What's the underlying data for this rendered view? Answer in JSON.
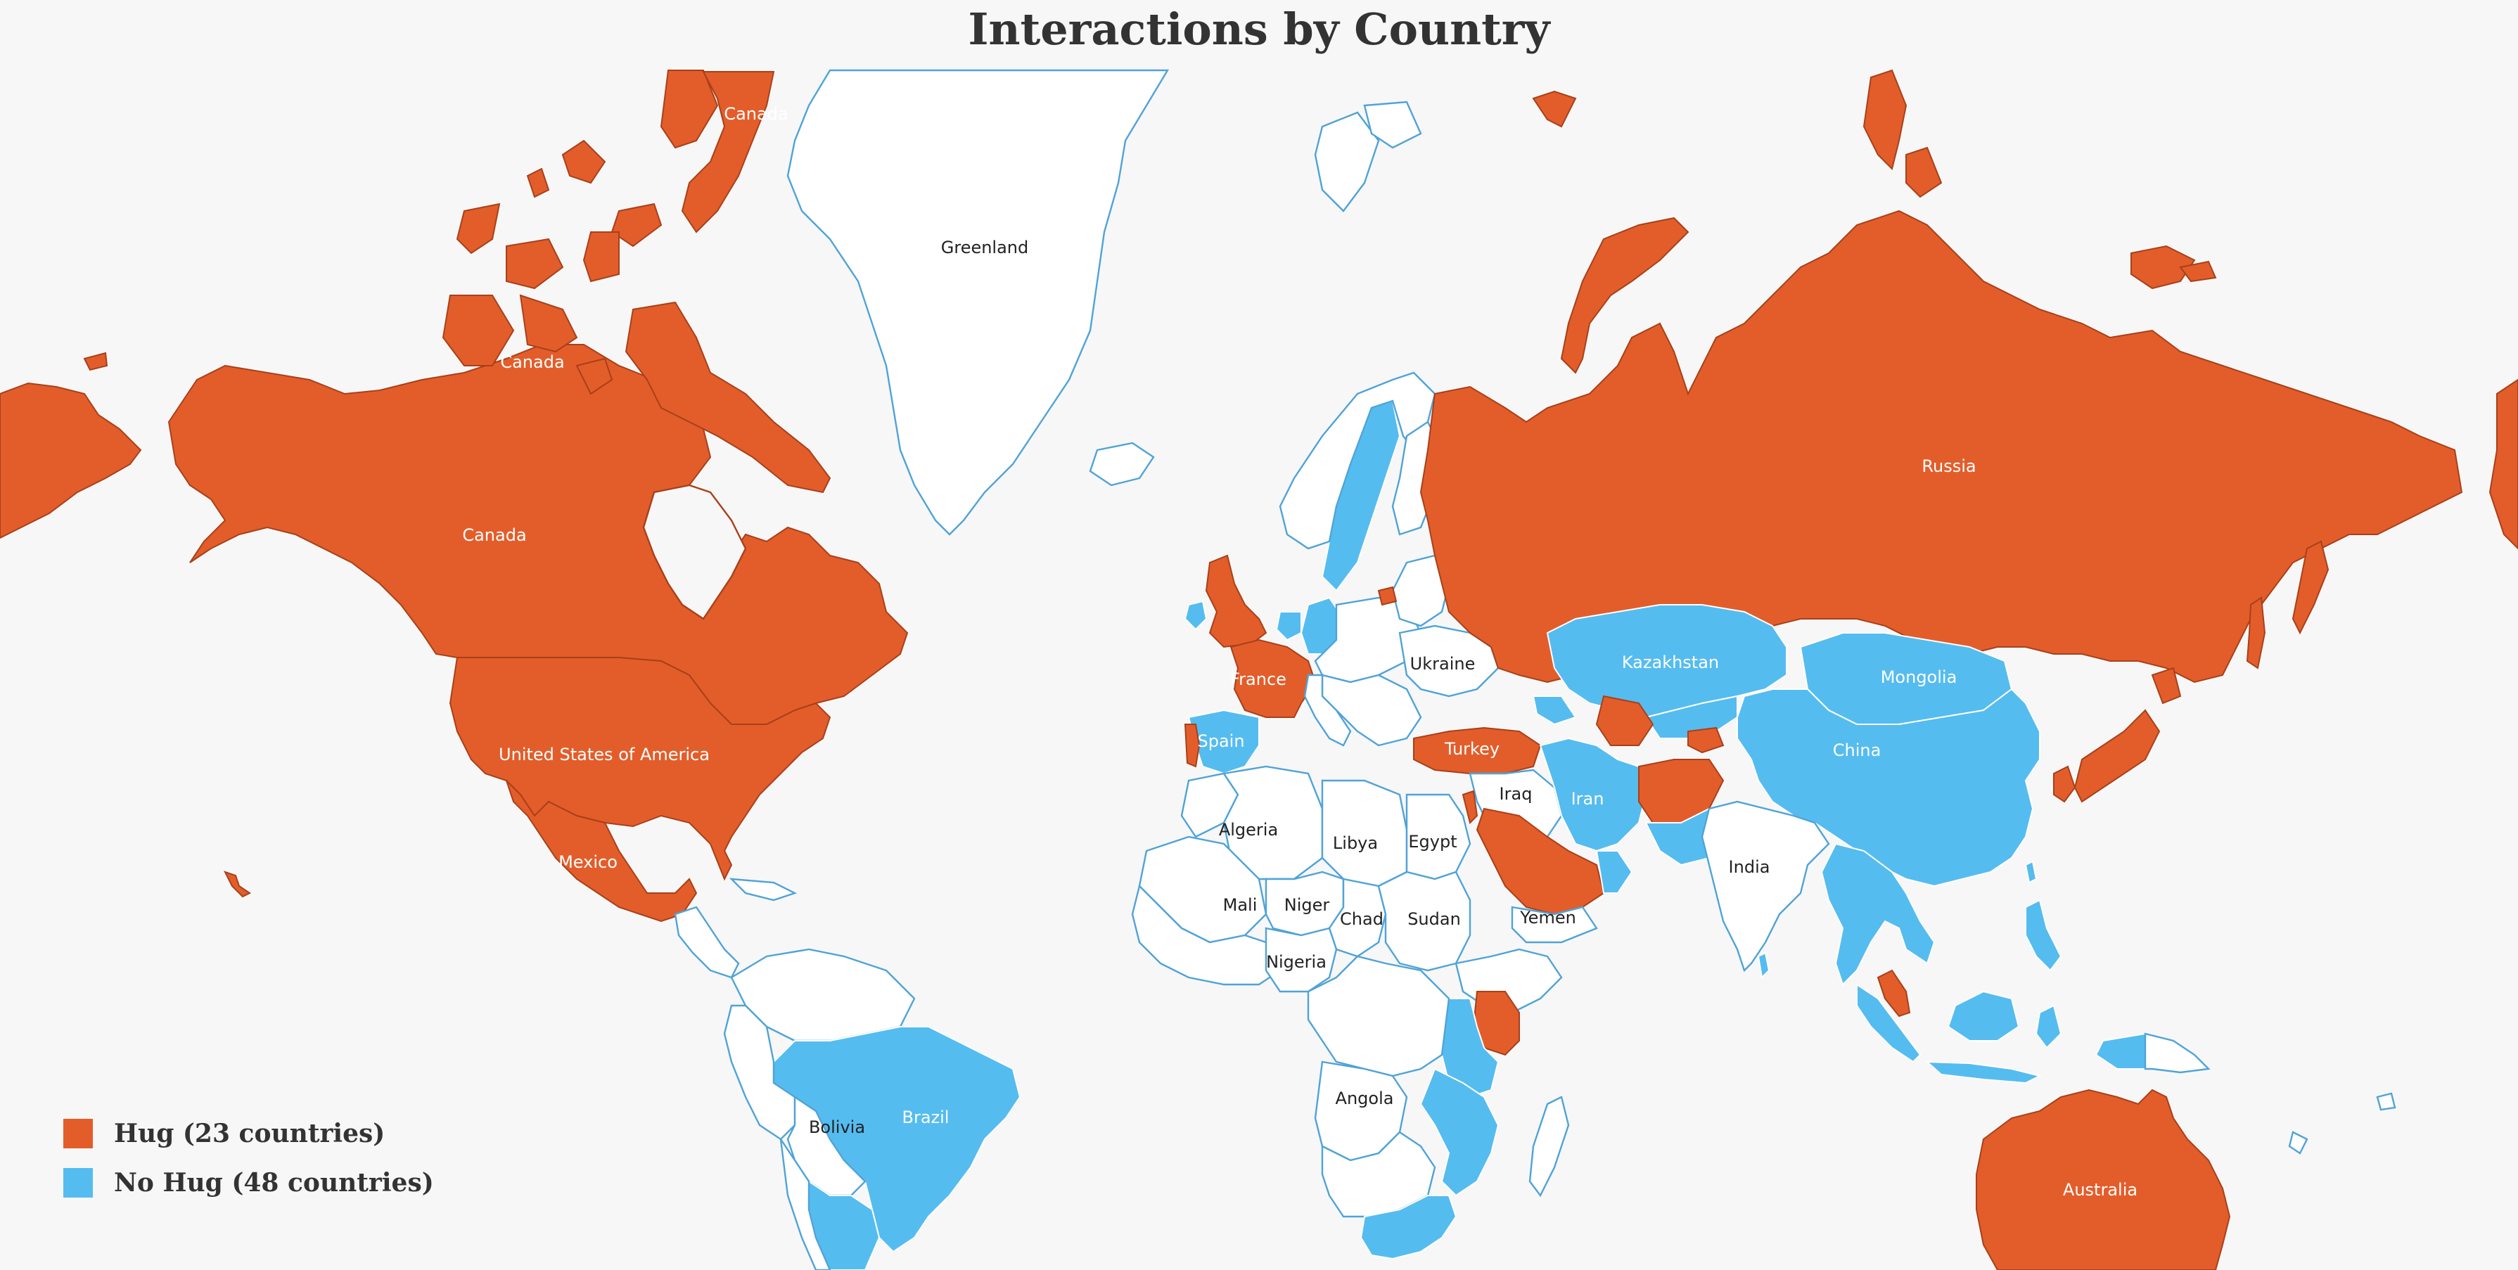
{
  "title": "Interactions by Country",
  "colors": {
    "hug": "#e35d2a",
    "no_hug": "#55bcf0",
    "no_data": "#ffffff",
    "border": "#4fa3d8",
    "background": "#f7f7f7"
  },
  "legend": {
    "hug_label": "Hug (23 countries)",
    "no_hug_label": "No Hug (48 countries)"
  },
  "map_labels": {
    "canada_1": "Canada",
    "canada_2": "Canada",
    "canada_3": "Canada",
    "greenland": "Greenland",
    "russia": "Russia",
    "kazakhstan": "Kazakhstan",
    "mongolia": "Mongolia",
    "china": "China",
    "ukraine": "Ukraine",
    "france": "France",
    "spain": "Spain",
    "turkey": "Turkey",
    "iraq": "Iraq",
    "iran": "Iran",
    "usa": "United States of America",
    "mexico": "Mexico",
    "algeria": "Algeria",
    "libya": "Libya",
    "egypt": "Egypt",
    "mali": "Mali",
    "niger": "Niger",
    "chad": "Chad",
    "sudan": "Sudan",
    "nigeria": "Nigeria",
    "yemen": "Yemen",
    "india": "India",
    "angola": "Angola",
    "bolivia": "Bolivia",
    "brazil": "Brazil",
    "australia": "Australia"
  }
}
